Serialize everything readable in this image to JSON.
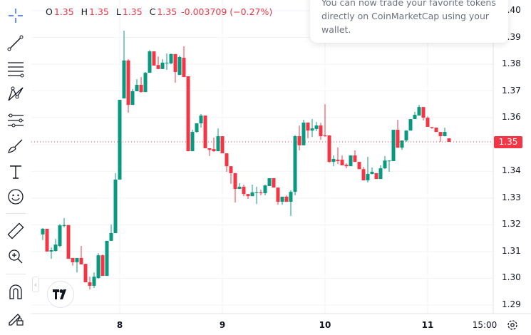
{
  "legend": {
    "o_label": "O",
    "o": "1.35",
    "h_label": "H",
    "h": "1.35",
    "l_label": "L",
    "l": "1.35",
    "c_label": "C",
    "c": "1.35",
    "change": "-0.003709 (−0.27%)"
  },
  "popup": {
    "lines": [
      "You can now trade your favorite tokens",
      "directly on CoinMarketCap using your",
      "wallet."
    ]
  },
  "toolbar": {
    "tools": [
      "crosshair-icon",
      "trend-line-icon",
      "fib-retracement-icon",
      "pattern-icon",
      "parallel-channel-icon",
      "brush-icon",
      "text-icon",
      "emoji-icon",
      "ruler-icon",
      "zoom-in-icon",
      "magnet-icon",
      "lock-drawing-icon"
    ]
  },
  "colors": {
    "up": "#089981",
    "down": "#f23645",
    "accent": "#2962ff"
  },
  "current_price": "1.35",
  "chart_data": {
    "type": "candlestick",
    "price_ticks": [
      "1.29",
      "1.30",
      "1.31",
      "1.32",
      "1.33",
      "1.34",
      "1.35",
      "1.36",
      "1.37",
      "1.38",
      "1.39",
      "1.40"
    ],
    "time_ticks": [
      "8",
      "9",
      "10",
      "11",
      "15:00"
    ],
    "ylim": [
      1.29,
      1.4
    ],
    "grid": true,
    "ohlc": [
      [
        1.3164,
        1.3188,
        1.3143,
        1.3185
      ],
      [
        1.3185,
        1.3185,
        1.31,
        1.31
      ],
      [
        1.31,
        1.3116,
        1.3073,
        1.3105
      ],
      [
        1.3102,
        1.3147,
        1.31,
        1.3126
      ],
      [
        1.3121,
        1.3203,
        1.3116,
        1.3198
      ],
      [
        1.3196,
        1.3225,
        1.319,
        1.3199
      ],
      [
        1.3199,
        1.3199,
        1.3073,
        1.3073
      ],
      [
        1.3076,
        1.3076,
        1.3047,
        1.306
      ],
      [
        1.306,
        1.3076,
        1.3022,
        1.3076
      ],
      [
        1.3076,
        1.3121,
        1.3052,
        1.3052
      ],
      [
        1.3054,
        1.3054,
        1.2985,
        1.2985
      ],
      [
        1.2985,
        1.3006,
        1.2958,
        1.2972
      ],
      [
        1.2972,
        1.3022,
        1.2964,
        1.3006
      ],
      [
        1.3001,
        1.3094,
        1.2998,
        1.3086
      ],
      [
        1.3086,
        1.3089,
        1.3009,
        1.3009
      ],
      [
        1.3009,
        1.314,
        1.3009,
        1.314
      ],
      [
        1.314,
        1.3201,
        1.314,
        1.3169
      ],
      [
        1.3169,
        1.3393,
        1.3169,
        1.3369
      ],
      [
        1.3369,
        1.3667,
        1.3369,
        1.3667
      ],
      [
        1.3672,
        1.3925,
        1.3672,
        1.3814
      ],
      [
        1.3814,
        1.3819,
        1.3619,
        1.3648
      ],
      [
        1.3648,
        1.3707,
        1.3648,
        1.3699
      ],
      [
        1.3699,
        1.3744,
        1.3699,
        1.3723
      ],
      [
        1.3723,
        1.3752,
        1.3694,
        1.3696
      ],
      [
        1.3696,
        1.3771,
        1.3696,
        1.3768
      ],
      [
        1.3768,
        1.3853,
        1.3768,
        1.3848
      ],
      [
        1.3848,
        1.3848,
        1.3795,
        1.3795
      ],
      [
        1.3797,
        1.3829,
        1.3782,
        1.3782
      ],
      [
        1.3782,
        1.3819,
        1.3782,
        1.3806
      ],
      [
        1.3806,
        1.384,
        1.3779,
        1.3806
      ],
      [
        1.3803,
        1.384,
        1.38,
        1.3838
      ],
      [
        1.3838,
        1.3838,
        1.3731,
        1.3771
      ],
      [
        1.376,
        1.3832,
        1.376,
        1.3827
      ],
      [
        1.3824,
        1.3867,
        1.3752,
        1.3752
      ],
      [
        1.3755,
        1.3755,
        1.3475,
        1.3475
      ],
      [
        1.3475,
        1.3555,
        1.3475,
        1.3547
      ],
      [
        1.3547,
        1.3579,
        1.3544,
        1.3579
      ],
      [
        1.3579,
        1.3614,
        1.3563,
        1.3608
      ],
      [
        1.3608,
        1.3608,
        1.3486,
        1.3486
      ],
      [
        1.3486,
        1.3486,
        1.3457,
        1.348
      ],
      [
        1.3483,
        1.3526,
        1.3472,
        1.3475
      ],
      [
        1.3475,
        1.356,
        1.3475,
        1.3531
      ],
      [
        1.3531,
        1.3531,
        1.3467,
        1.3467
      ],
      [
        1.3467,
        1.3467,
        1.3398,
        1.3419
      ],
      [
        1.3419,
        1.3419,
        1.3353,
        1.3393
      ],
      [
        1.3393,
        1.3393,
        1.3283,
        1.3334
      ],
      [
        1.3334,
        1.3355,
        1.3334,
        1.3342
      ],
      [
        1.3342,
        1.335,
        1.3307,
        1.3315
      ],
      [
        1.3315,
        1.3315,
        1.3297,
        1.3307
      ],
      [
        1.3307,
        1.335,
        1.3307,
        1.3321
      ],
      [
        1.3321,
        1.3342,
        1.3278,
        1.3321
      ],
      [
        1.3321,
        1.3331,
        1.331,
        1.3318
      ],
      [
        1.3318,
        1.335,
        1.331,
        1.3347
      ],
      [
        1.3345,
        1.3374,
        1.3345,
        1.3374
      ],
      [
        1.3374,
        1.3374,
        1.3339,
        1.3339
      ],
      [
        1.3339,
        1.3339,
        1.3275,
        1.3286
      ],
      [
        1.3286,
        1.3305,
        1.3275,
        1.3305
      ],
      [
        1.3305,
        1.331,
        1.3286,
        1.3286
      ],
      [
        1.3286,
        1.3329,
        1.3233,
        1.3323
      ],
      [
        1.3323,
        1.3536,
        1.331,
        1.3531
      ],
      [
        1.3531,
        1.3571,
        1.3478,
        1.3497
      ],
      [
        1.3497,
        1.3592,
        1.3497,
        1.3582
      ],
      [
        1.3582,
        1.3582,
        1.3523,
        1.3552
      ],
      [
        1.3552,
        1.3595,
        1.3528,
        1.356
      ],
      [
        1.3558,
        1.3584,
        1.355,
        1.3571
      ],
      [
        1.3571,
        1.3581,
        1.3518,
        1.3531
      ],
      [
        1.3534,
        1.3651,
        1.3528,
        1.3531
      ],
      [
        1.3534,
        1.3534,
        1.3432,
        1.3435
      ],
      [
        1.3435,
        1.3459,
        1.3419,
        1.3446
      ],
      [
        1.3443,
        1.3489,
        1.3427,
        1.3438
      ],
      [
        1.3443,
        1.3459,
        1.3422,
        1.3422
      ],
      [
        1.3424,
        1.343,
        1.3411,
        1.3419
      ],
      [
        1.3419,
        1.3459,
        1.3419,
        1.3459
      ],
      [
        1.3459,
        1.3478,
        1.3435,
        1.3435
      ],
      [
        1.3435,
        1.3435,
        1.3408,
        1.3408
      ],
      [
        1.3408,
        1.3416,
        1.3366,
        1.3366
      ],
      [
        1.3366,
        1.3454,
        1.3358,
        1.339
      ],
      [
        1.339,
        1.3414,
        1.3388,
        1.3398
      ],
      [
        1.3393,
        1.3393,
        1.3371,
        1.3371
      ],
      [
        1.3371,
        1.3422,
        1.3371,
        1.3411
      ],
      [
        1.3411,
        1.3457,
        1.3408,
        1.344
      ],
      [
        1.344,
        1.344,
        1.3398,
        1.344
      ],
      [
        1.3438,
        1.3555,
        1.3438,
        1.3555
      ],
      [
        1.3555,
        1.3592,
        1.3488,
        1.3488
      ],
      [
        1.3488,
        1.3515,
        1.348,
        1.3515
      ],
      [
        1.3515,
        1.3552,
        1.351,
        1.3552
      ],
      [
        1.3552,
        1.3595,
        1.3552,
        1.3595
      ],
      [
        1.3595,
        1.3622,
        1.3595,
        1.3611
      ],
      [
        1.3608,
        1.3648,
        1.3608,
        1.364
      ],
      [
        1.364,
        1.364,
        1.359,
        1.36
      ],
      [
        1.36,
        1.3605,
        1.3566,
        1.3566
      ],
      [
        1.3566,
        1.3566,
        1.3558,
        1.3563
      ],
      [
        1.3563,
        1.3563,
        1.3547,
        1.3547
      ],
      [
        1.3547,
        1.3547,
        1.351,
        1.3531
      ],
      [
        1.3531,
        1.3563,
        1.3531,
        1.3547
      ],
      [
        1.3523,
        1.3523,
        1.351,
        1.351
      ]
    ],
    "last_price": 1.351
  }
}
